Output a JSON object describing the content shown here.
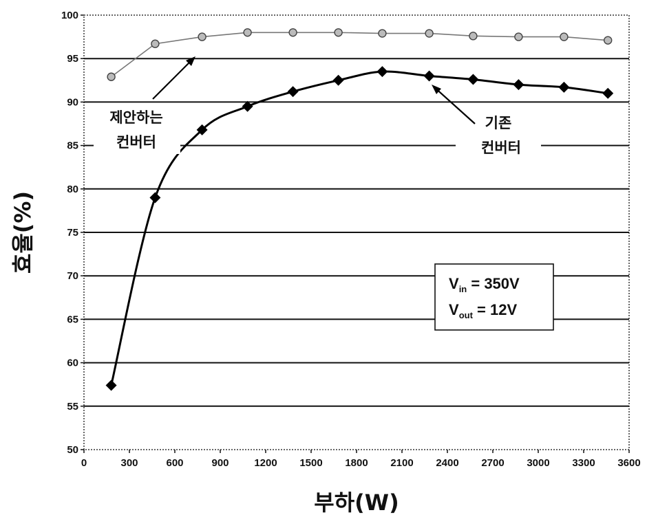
{
  "chart_data": {
    "type": "line",
    "xlabel": "부하(W)",
    "ylabel": "효율(%)",
    "xlim": [
      0,
      3600
    ],
    "ylim": [
      50,
      100
    ],
    "x_ticks": [
      0,
      300,
      600,
      900,
      1200,
      1500,
      1800,
      2100,
      2400,
      2700,
      3000,
      3300,
      3600
    ],
    "y_ticks": [
      50,
      55,
      60,
      65,
      70,
      75,
      80,
      85,
      90,
      95,
      100
    ],
    "grid": "horizontal",
    "series": [
      {
        "name": "제안하는 컨버터",
        "marker": "circle",
        "color": "#777777",
        "x": [
          180,
          470,
          780,
          1080,
          1380,
          1680,
          1970,
          2280,
          2570,
          2870,
          3170,
          3460
        ],
        "y": [
          92.9,
          96.7,
          97.5,
          98.0,
          98.0,
          98.0,
          97.9,
          97.9,
          97.6,
          97.5,
          97.5,
          97.1
        ]
      },
      {
        "name": "기존 컨버터",
        "marker": "diamond",
        "color": "#000000",
        "x": [
          180,
          470,
          780,
          1080,
          1380,
          1680,
          1970,
          2280,
          2570,
          2870,
          3170,
          3460
        ],
        "y": [
          57.4,
          79.0,
          86.8,
          89.5,
          91.2,
          92.5,
          93.5,
          93.0,
          92.6,
          92.0,
          91.7,
          91.0
        ]
      }
    ],
    "annotations": {
      "proposed_line1": "제안하는",
      "proposed_line2": "컨버터",
      "conventional_line1": "기존",
      "conventional_line2": "컨버터"
    },
    "condition_box": {
      "vin_symbol": "V",
      "vin_sub": "in",
      "vin_value": " = 350V",
      "vout_symbol": "V",
      "vout_sub": "out",
      "vout_value": " = 12V"
    }
  }
}
